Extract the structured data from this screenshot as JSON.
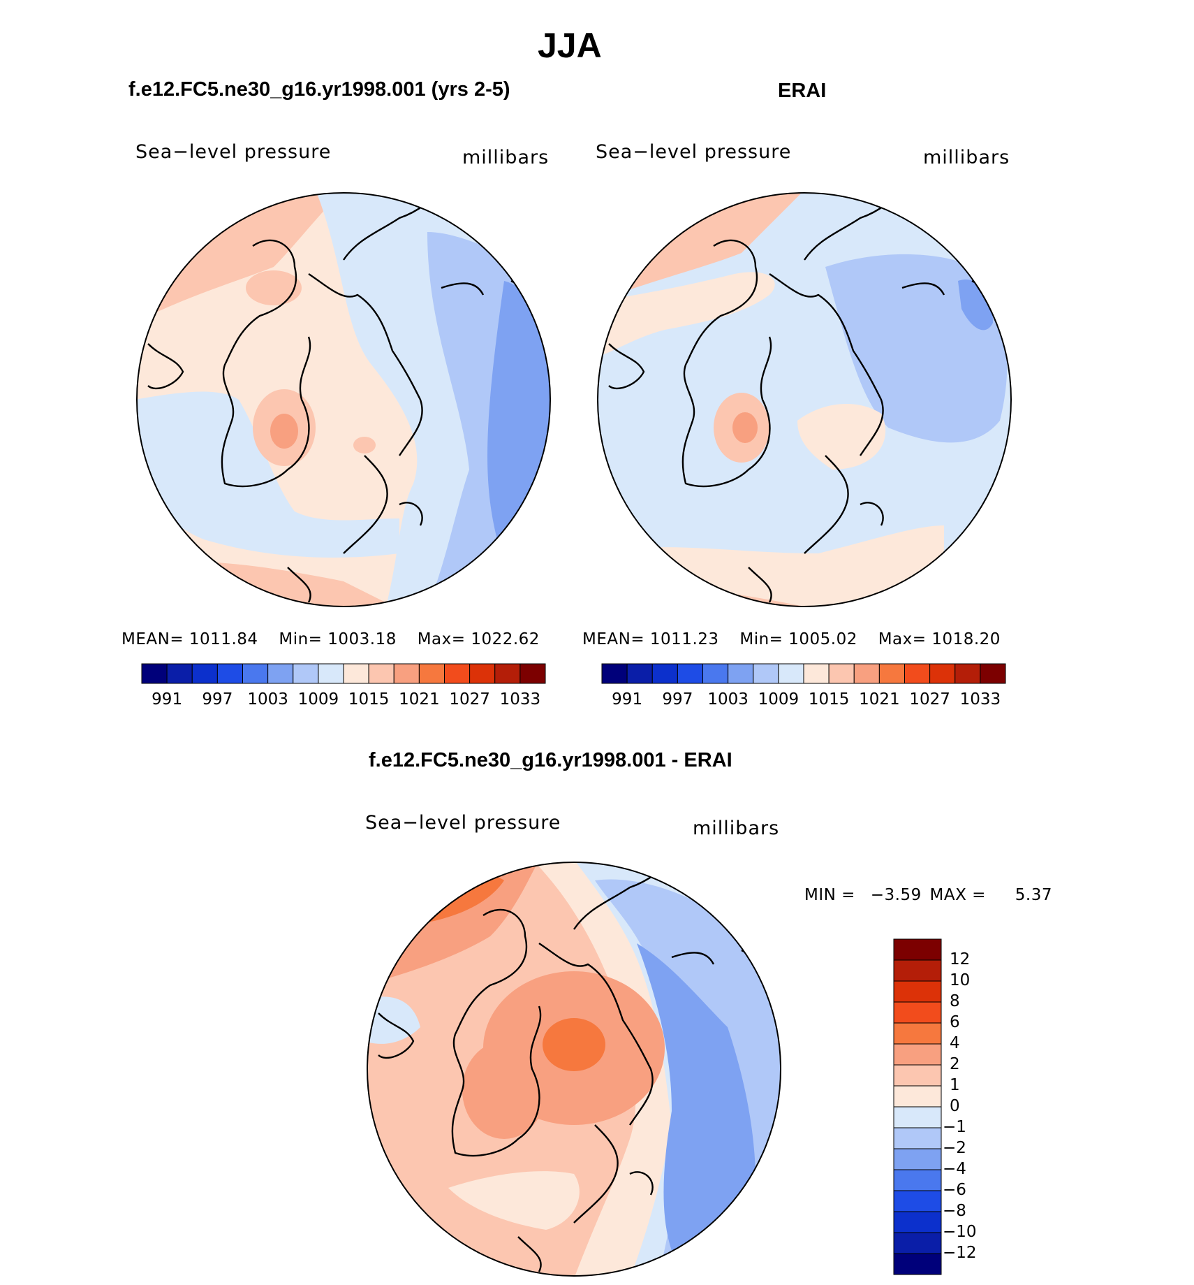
{
  "main_title": "JJA",
  "panels": [
    {
      "id": "model",
      "title": "f.e12.FC5.ne30_g16.yr1998.001 (yrs 2-5)",
      "left_label": "Sea−level pressure",
      "right_label": "millibars",
      "stats": {
        "mean_label": "MEAN=",
        "mean": "1011.84",
        "min_label": "Min=",
        "min": "1003.18",
        "max_label": "Max=",
        "max": "1022.62"
      }
    },
    {
      "id": "obs",
      "title": "ERAI",
      "left_label": "Sea−level pressure",
      "right_label": "millibars",
      "stats": {
        "mean_label": "MEAN=",
        "mean": "1011.23",
        "min_label": "Min=",
        "min": "1005.02",
        "max_label": "Max=",
        "max": "1018.20"
      }
    },
    {
      "id": "diff",
      "title": "f.e12.FC5.ne30_g16.yr1998.001 - ERAI",
      "left_label": "Sea−level pressure",
      "right_label": "millibars",
      "stats": {
        "min_label": "MIN =",
        "min": "−3.59",
        "max_label": "MAX =",
        "max": "5.37"
      }
    }
  ],
  "colorbar_abs": {
    "colors": [
      "#00007a",
      "#0a1ea8",
      "#0c30cc",
      "#1e4ce6",
      "#4a78ee",
      "#7ea2f2",
      "#b0c8f8",
      "#d8e8fa",
      "#fde8da",
      "#fcc6b0",
      "#f8a080",
      "#f6783e",
      "#f24c1c",
      "#dc3208",
      "#b41e08",
      "#7c0000"
    ],
    "tick_labels": [
      "991",
      "997",
      "1003",
      "1009",
      "1015",
      "1021",
      "1027",
      "1033"
    ]
  },
  "colorbar_diff": {
    "colors": [
      "#7c0000",
      "#b41e08",
      "#dc3208",
      "#f24c1c",
      "#f6783e",
      "#f8a080",
      "#fcc6b0",
      "#fde8da",
      "#d8e8fa",
      "#b0c8f8",
      "#7ea2f2",
      "#4a78ee",
      "#1e4ce6",
      "#0c30cc",
      "#0a1ea8",
      "#00007a"
    ],
    "tick_labels": [
      "12",
      "10",
      "8",
      "6",
      "4",
      "2",
      "1",
      "0",
      "−1",
      "−2",
      "−4",
      "−6",
      "−8",
      "−10",
      "−12"
    ]
  }
}
